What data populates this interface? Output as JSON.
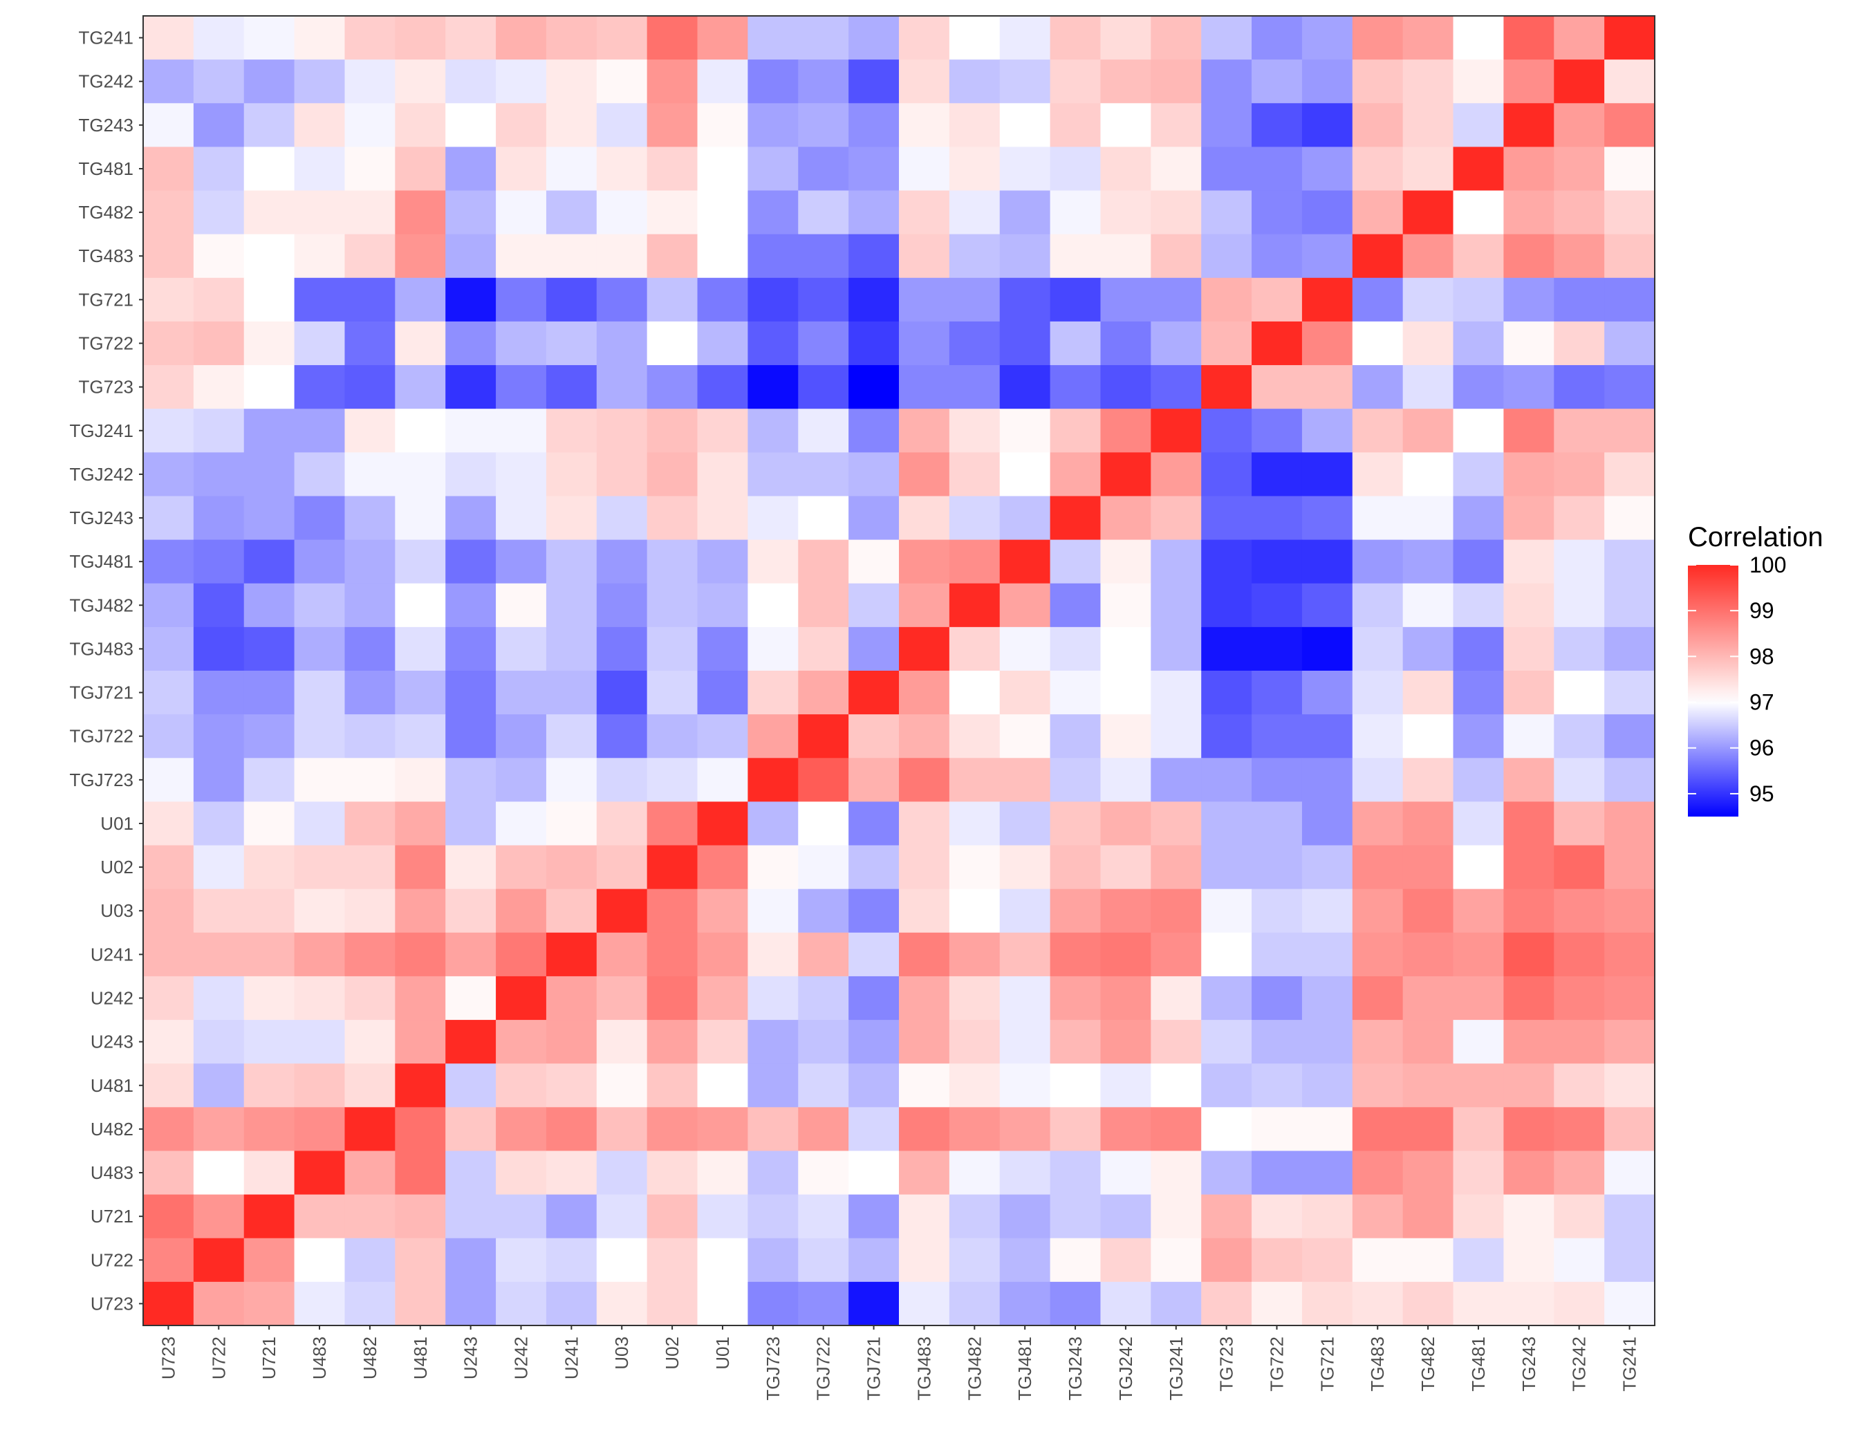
{
  "chart_data": {
    "type": "heatmap",
    "title": "",
    "xlabel": "",
    "ylabel": "",
    "x_labels": [
      "U723",
      "U722",
      "U721",
      "U483",
      "U482",
      "U481",
      "U243",
      "U242",
      "U241",
      "U03",
      "U02",
      "U01",
      "TGJ723",
      "TGJ722",
      "TGJ721",
      "TGJ483",
      "TGJ482",
      "TGJ481",
      "TGJ243",
      "TGJ242",
      "TGJ241",
      "TG723",
      "TG722",
      "TG721",
      "TG483",
      "TG482",
      "TG481",
      "TG243",
      "TG242",
      "TG241"
    ],
    "y_labels": [
      "TG241",
      "TG242",
      "TG243",
      "TG481",
      "TG482",
      "TG483",
      "TG721",
      "TG722",
      "TG723",
      "TGJ241",
      "TGJ242",
      "TGJ243",
      "TGJ481",
      "TGJ482",
      "TGJ483",
      "TGJ721",
      "TGJ722",
      "TGJ723",
      "U01",
      "U02",
      "U03",
      "U241",
      "U242",
      "U243",
      "U481",
      "U482",
      "U483",
      "U721",
      "U722",
      "U723"
    ],
    "values": [
      [
        97.4,
        96.8,
        96.9,
        97.2,
        97.7,
        97.8,
        97.6,
        98.1,
        97.9,
        97.8,
        99.0,
        98.4,
        96.4,
        96.4,
        96.2,
        97.6,
        97.0,
        96.8,
        97.8,
        97.5,
        97.9,
        96.4,
        95.9,
        96.1,
        98.5,
        98.3,
        97.0,
        99.2,
        98.3,
        100.0
      ],
      [
        96.2,
        96.4,
        96.1,
        96.4,
        96.8,
        97.3,
        96.7,
        96.8,
        97.3,
        97.1,
        98.5,
        96.8,
        95.8,
        96.0,
        95.3,
        97.5,
        96.4,
        96.5,
        97.6,
        97.9,
        98.0,
        95.9,
        96.2,
        96.0,
        97.8,
        97.6,
        97.2,
        98.6,
        100.0,
        97.4
      ],
      [
        96.9,
        96.0,
        96.5,
        97.4,
        96.9,
        97.5,
        97.0,
        97.6,
        97.3,
        96.7,
        98.4,
        97.1,
        96.1,
        96.2,
        95.9,
        97.2,
        97.4,
        97.0,
        97.7,
        97.0,
        97.6,
        95.9,
        95.3,
        95.1,
        98.0,
        97.6,
        96.6,
        100.0,
        98.4,
        98.8
      ],
      [
        97.9,
        96.5,
        97.0,
        96.8,
        97.1,
        97.8,
        96.1,
        97.4,
        96.9,
        97.3,
        97.6,
        97.0,
        96.3,
        95.9,
        96.0,
        96.9,
        97.3,
        96.8,
        96.7,
        97.5,
        97.2,
        95.8,
        95.8,
        96.0,
        97.7,
        97.5,
        100.0,
        98.4,
        98.2,
        97.1
      ],
      [
        97.8,
        96.6,
        97.3,
        97.3,
        97.3,
        98.6,
        96.3,
        96.9,
        96.4,
        96.9,
        97.2,
        97.0,
        95.9,
        96.5,
        96.2,
        97.6,
        96.8,
        96.2,
        96.9,
        97.4,
        97.5,
        96.4,
        95.8,
        95.7,
        98.1,
        100.0,
        97.0,
        98.2,
        98.0,
        97.6
      ],
      [
        97.8,
        97.1,
        97.0,
        97.2,
        97.6,
        98.5,
        96.2,
        97.2,
        97.2,
        97.2,
        97.9,
        97.0,
        95.7,
        95.7,
        95.4,
        97.7,
        96.4,
        96.3,
        97.2,
        97.2,
        97.8,
        96.3,
        95.9,
        96.0,
        100.0,
        98.5,
        97.8,
        98.7,
        98.4,
        97.8
      ],
      [
        97.5,
        97.6,
        97.0,
        95.5,
        95.5,
        96.2,
        94.7,
        95.7,
        95.3,
        95.7,
        96.4,
        95.7,
        95.2,
        95.4,
        94.9,
        96.0,
        96.0,
        95.4,
        95.2,
        95.9,
        95.9,
        98.1,
        97.9,
        100.0,
        95.8,
        96.6,
        96.5,
        96.0,
        95.8,
        95.8
      ],
      [
        97.8,
        97.9,
        97.2,
        96.6,
        95.6,
        97.3,
        95.9,
        96.3,
        96.4,
        96.2,
        97.0,
        96.3,
        95.4,
        95.8,
        95.1,
        95.9,
        95.6,
        95.4,
        96.4,
        95.7,
        96.2,
        98.0,
        100.0,
        98.7,
        97.0,
        97.4,
        96.3,
        97.1,
        97.6,
        96.3
      ],
      [
        97.6,
        97.2,
        97.0,
        95.5,
        95.4,
        96.3,
        95.0,
        95.7,
        95.4,
        96.2,
        95.9,
        95.4,
        94.6,
        95.3,
        94.5,
        95.8,
        95.8,
        95.0,
        95.6,
        95.3,
        95.5,
        100.0,
        97.9,
        97.9,
        96.1,
        96.7,
        95.9,
        96.0,
        95.6,
        95.7
      ],
      [
        96.7,
        96.6,
        96.1,
        96.1,
        97.3,
        97.0,
        96.9,
        96.9,
        97.6,
        97.7,
        97.9,
        97.6,
        96.3,
        96.8,
        95.8,
        98.1,
        97.4,
        97.1,
        97.8,
        98.7,
        100.0,
        95.5,
        95.7,
        96.2,
        97.8,
        98.1,
        97.0,
        98.8,
        98.0,
        98.0
      ],
      [
        96.2,
        96.1,
        96.1,
        96.5,
        96.9,
        96.9,
        96.7,
        96.8,
        97.5,
        97.7,
        98.0,
        97.4,
        96.4,
        96.4,
        96.3,
        98.5,
        97.6,
        97.0,
        98.2,
        100.0,
        98.4,
        95.4,
        94.9,
        94.9,
        97.4,
        97.0,
        96.5,
        98.2,
        98.1,
        97.5
      ],
      [
        96.5,
        96.0,
        96.1,
        95.8,
        96.3,
        96.9,
        96.1,
        96.8,
        97.4,
        96.6,
        97.7,
        97.4,
        96.8,
        97.0,
        96.1,
        97.5,
        96.6,
        96.4,
        100.0,
        98.2,
        97.9,
        95.5,
        95.5,
        95.6,
        96.9,
        96.9,
        96.1,
        98.1,
        97.7,
        97.1
      ],
      [
        95.8,
        95.7,
        95.4,
        96.0,
        96.2,
        96.6,
        95.6,
        96.0,
        96.4,
        96.0,
        96.4,
        96.2,
        97.3,
        97.9,
        97.1,
        98.5,
        98.6,
        100.0,
        96.5,
        97.2,
        96.3,
        95.1,
        95.0,
        95.0,
        96.0,
        96.1,
        95.7,
        97.4,
        96.8,
        96.5
      ],
      [
        96.2,
        95.4,
        96.1,
        96.4,
        96.2,
        97.0,
        96.0,
        97.1,
        96.4,
        95.9,
        96.4,
        96.3,
        97.0,
        97.9,
        96.5,
        98.3,
        100.0,
        98.3,
        95.8,
        97.1,
        96.3,
        95.1,
        95.2,
        95.4,
        96.5,
        96.9,
        96.6,
        97.5,
        96.8,
        96.5
      ],
      [
        96.3,
        95.3,
        95.4,
        96.2,
        95.8,
        96.7,
        95.8,
        96.6,
        96.4,
        95.7,
        96.5,
        95.8,
        96.9,
        97.6,
        96.0,
        100.0,
        97.6,
        96.9,
        96.7,
        97.0,
        96.3,
        94.7,
        94.7,
        94.6,
        96.6,
        96.2,
        95.7,
        97.6,
        96.5,
        96.2
      ],
      [
        96.5,
        95.9,
        95.9,
        96.6,
        96.0,
        96.3,
        95.7,
        96.3,
        96.3,
        95.3,
        96.6,
        95.7,
        97.6,
        98.2,
        100.0,
        98.4,
        97.0,
        97.5,
        96.9,
        97.0,
        96.8,
        95.3,
        95.5,
        95.9,
        96.7,
        97.5,
        95.8,
        97.8,
        97.0,
        96.6
      ],
      [
        96.4,
        96.0,
        96.1,
        96.6,
        96.5,
        96.6,
        95.7,
        96.1,
        96.6,
        95.6,
        96.3,
        96.4,
        98.3,
        100.0,
        97.8,
        98.1,
        97.4,
        97.1,
        96.4,
        97.2,
        96.8,
        95.4,
        95.6,
        95.6,
        96.8,
        97.0,
        96.0,
        96.9,
        96.5,
        96.0
      ],
      [
        96.9,
        96.0,
        96.6,
        97.1,
        97.1,
        97.2,
        96.4,
        96.3,
        96.9,
        96.6,
        96.7,
        96.9,
        100.0,
        99.3,
        98.1,
        98.9,
        97.9,
        97.9,
        96.5,
        96.8,
        96.1,
        96.1,
        95.9,
        95.9,
        96.7,
        97.6,
        96.4,
        98.1,
        96.7,
        96.4
      ],
      [
        97.4,
        96.5,
        97.1,
        96.7,
        97.9,
        98.2,
        96.4,
        96.9,
        97.1,
        97.6,
        98.8,
        100.0,
        96.3,
        97.0,
        95.8,
        97.6,
        96.8,
        96.5,
        97.8,
        98.1,
        97.9,
        96.3,
        96.3,
        95.9,
        98.3,
        98.5,
        96.7,
        98.9,
        98.0,
        98.3
      ],
      [
        97.9,
        96.8,
        97.5,
        97.6,
        97.6,
        98.7,
        97.3,
        97.9,
        98.0,
        97.8,
        100.0,
        98.8,
        97.1,
        96.9,
        96.4,
        97.6,
        97.1,
        97.3,
        97.9,
        97.6,
        98.1,
        96.3,
        96.3,
        96.4,
        98.6,
        98.6,
        97.0,
        98.9,
        99.1,
        98.3
      ],
      [
        98.0,
        97.6,
        97.6,
        97.3,
        97.4,
        98.3,
        97.6,
        98.4,
        97.8,
        100.0,
        98.8,
        98.2,
        96.9,
        96.2,
        95.8,
        97.5,
        97.0,
        96.7,
        98.3,
        98.6,
        98.7,
        96.9,
        96.6,
        96.7,
        98.4,
        98.8,
        98.3,
        98.8,
        98.6,
        98.5
      ],
      [
        98.0,
        98.0,
        98.0,
        98.3,
        98.6,
        98.8,
        98.3,
        98.9,
        100.0,
        98.3,
        98.8,
        98.4,
        97.3,
        98.1,
        96.6,
        98.8,
        98.3,
        97.9,
        98.8,
        98.9,
        98.6,
        97.0,
        96.5,
        96.5,
        98.5,
        98.6,
        98.5,
        99.3,
        98.9,
        98.7
      ],
      [
        97.6,
        96.7,
        97.3,
        97.4,
        97.6,
        98.3,
        97.1,
        100.0,
        98.3,
        98.0,
        98.9,
        98.1,
        96.7,
        96.5,
        95.8,
        98.2,
        97.5,
        96.8,
        98.3,
        98.5,
        97.3,
        96.3,
        95.9,
        96.3,
        98.8,
        98.3,
        98.3,
        99.0,
        98.7,
        98.6
      ],
      [
        97.3,
        96.6,
        96.7,
        96.7,
        97.3,
        98.3,
        100.0,
        98.2,
        98.3,
        97.3,
        98.3,
        97.6,
        96.2,
        96.4,
        96.1,
        98.2,
        97.6,
        96.8,
        98.0,
        98.4,
        97.7,
        96.6,
        96.3,
        96.3,
        98.1,
        98.3,
        96.9,
        98.4,
        98.4,
        98.2
      ],
      [
        97.5,
        96.3,
        97.7,
        97.8,
        97.5,
        100.0,
        96.5,
        97.7,
        97.6,
        97.1,
        97.8,
        97.0,
        96.2,
        96.6,
        96.3,
        97.1,
        97.3,
        96.9,
        97.0,
        96.8,
        97.0,
        96.4,
        96.5,
        96.4,
        98.0,
        98.1,
        98.1,
        98.1,
        97.6,
        97.4
      ],
      [
        98.6,
        98.3,
        98.5,
        98.6,
        100.0,
        99.0,
        97.8,
        98.5,
        98.7,
        97.9,
        98.5,
        98.4,
        97.9,
        98.4,
        96.6,
        98.8,
        98.5,
        98.3,
        97.8,
        98.6,
        98.7,
        97.0,
        97.1,
        97.1,
        98.9,
        98.9,
        97.8,
        98.9,
        98.8,
        97.9
      ],
      [
        97.9,
        97.0,
        97.4,
        100.0,
        98.2,
        99.0,
        96.5,
        97.5,
        97.4,
        96.6,
        97.5,
        97.2,
        96.4,
        97.1,
        97.0,
        98.1,
        96.9,
        96.7,
        96.5,
        96.9,
        97.2,
        96.3,
        96.0,
        96.0,
        98.6,
        98.4,
        97.6,
        98.5,
        98.2,
        96.9
      ],
      [
        99.0,
        98.5,
        100.0,
        97.9,
        97.9,
        98.0,
        96.5,
        96.5,
        96.1,
        96.7,
        97.9,
        96.7,
        96.5,
        96.7,
        96.0,
        97.3,
        96.5,
        96.2,
        96.5,
        96.4,
        97.2,
        98.1,
        97.4,
        97.5,
        98.1,
        98.4,
        97.5,
        97.2,
        97.5,
        96.5
      ],
      [
        98.7,
        100.0,
        98.5,
        97.0,
        96.5,
        97.8,
        96.1,
        96.7,
        96.6,
        97.0,
        97.6,
        97.0,
        96.3,
        96.6,
        96.3,
        97.3,
        96.6,
        96.3,
        97.1,
        97.6,
        97.1,
        98.3,
        97.8,
        97.7,
        97.1,
        97.1,
        96.6,
        97.2,
        96.9,
        96.5
      ],
      [
        100.0,
        98.3,
        98.2,
        96.8,
        96.6,
        97.8,
        96.1,
        96.6,
        96.4,
        97.3,
        97.6,
        97.0,
        95.8,
        95.9,
        94.7,
        96.8,
        96.5,
        96.1,
        95.9,
        96.7,
        96.4,
        97.7,
        97.2,
        97.5,
        97.4,
        97.6,
        97.3,
        97.3,
        97.4,
        96.9
      ]
    ],
    "legend": {
      "title": "Correlation",
      "ticks": [
        100,
        99,
        98,
        97,
        96,
        95
      ],
      "min": 94.5,
      "mid": 97,
      "max": 100,
      "placement": "right"
    },
    "colors": {
      "low": "#0000ff",
      "mid": "#ffffff",
      "high": "#ff2a23"
    },
    "grid": false
  }
}
